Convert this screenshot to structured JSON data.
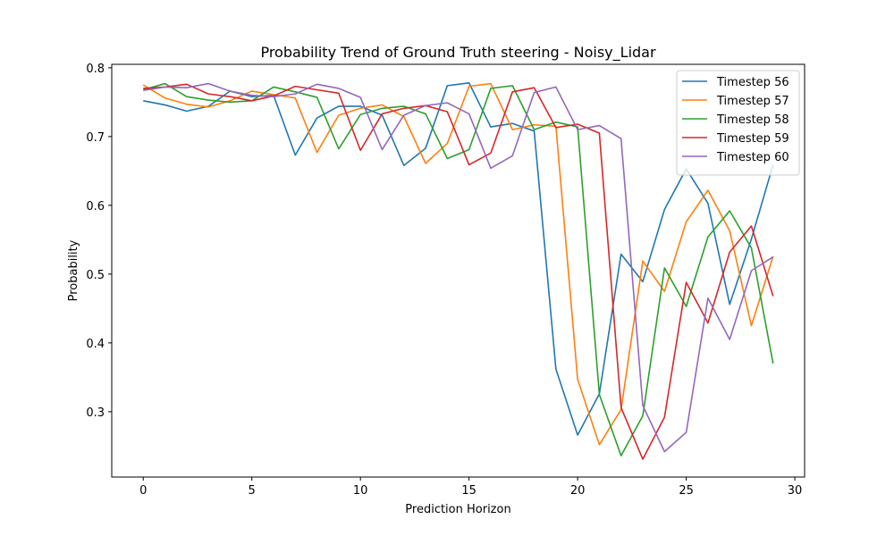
{
  "chart_data": {
    "type": "line",
    "title": "Probability Trend of Ground Truth steering - Noisy_Lidar",
    "xlabel": "Prediction Horizon",
    "ylabel": "Probability",
    "xlim": [
      -1.45,
      30.45
    ],
    "ylim": [
      0.205,
      0.805
    ],
    "xticks": [
      0,
      5,
      10,
      15,
      20,
      25,
      30
    ],
    "yticks": [
      0.3,
      0.4,
      0.5,
      0.6,
      0.7,
      0.8
    ],
    "ytick_labels": [
      "0.3",
      "0.4",
      "0.5",
      "0.6",
      "0.7",
      "0.8"
    ],
    "grid": false,
    "legend_position": "top-right",
    "x": [
      0,
      1,
      2,
      3,
      4,
      5,
      6,
      7,
      8,
      9,
      10,
      11,
      12,
      13,
      14,
      15,
      16,
      17,
      18,
      19,
      20,
      21,
      22,
      23,
      24,
      25,
      26,
      27,
      28,
      29
    ],
    "series": [
      {
        "name": "Timestep 56",
        "color": "#1f77b4",
        "values": [
          0.752,
          0.746,
          0.737,
          0.744,
          0.766,
          0.758,
          0.76,
          0.673,
          0.727,
          0.744,
          0.744,
          0.731,
          0.658,
          0.683,
          0.774,
          0.778,
          0.714,
          0.719,
          0.708,
          0.362,
          0.266,
          0.326,
          0.529,
          0.489,
          0.594,
          0.653,
          0.603,
          0.456,
          0.551,
          0.659
        ]
      },
      {
        "name": "Timestep 57",
        "color": "#ff7f0e",
        "values": [
          0.775,
          0.756,
          0.747,
          0.743,
          0.752,
          0.766,
          0.761,
          0.756,
          0.677,
          0.731,
          0.741,
          0.746,
          0.729,
          0.661,
          0.69,
          0.773,
          0.777,
          0.71,
          0.717,
          0.715,
          0.347,
          0.252,
          0.303,
          0.519,
          0.475,
          0.576,
          0.622,
          0.563,
          0.425,
          0.526
        ]
      },
      {
        "name": "Timestep 58",
        "color": "#2ca02c",
        "values": [
          0.768,
          0.777,
          0.758,
          0.753,
          0.75,
          0.752,
          0.772,
          0.765,
          0.757,
          0.682,
          0.732,
          0.741,
          0.744,
          0.733,
          0.668,
          0.681,
          0.77,
          0.774,
          0.71,
          0.721,
          0.714,
          0.325,
          0.236,
          0.294,
          0.509,
          0.453,
          0.554,
          0.592,
          0.538,
          0.37
        ]
      },
      {
        "name": "Timestep 59",
        "color": "#d62728",
        "values": [
          0.77,
          0.772,
          0.776,
          0.762,
          0.758,
          0.752,
          0.759,
          0.773,
          0.768,
          0.763,
          0.68,
          0.733,
          0.741,
          0.745,
          0.736,
          0.659,
          0.676,
          0.765,
          0.771,
          0.713,
          0.718,
          0.705,
          0.306,
          0.231,
          0.292,
          0.488,
          0.429,
          0.532,
          0.57,
          0.468
        ]
      },
      {
        "name": "Timestep 60",
        "color": "#9467bd",
        "values": [
          0.767,
          0.772,
          0.771,
          0.777,
          0.766,
          0.76,
          0.758,
          0.762,
          0.776,
          0.77,
          0.757,
          0.681,
          0.731,
          0.745,
          0.749,
          0.733,
          0.654,
          0.672,
          0.764,
          0.772,
          0.71,
          0.716,
          0.697,
          0.309,
          0.242,
          0.27,
          0.465,
          0.405,
          0.505,
          0.525
        ]
      }
    ]
  }
}
